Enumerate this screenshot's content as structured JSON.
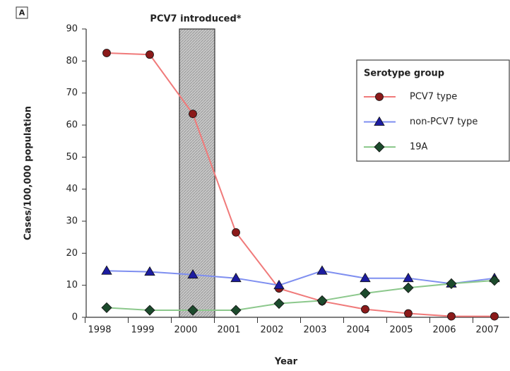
{
  "chart_data": {
    "type": "line",
    "panel_label": "A",
    "annotation": "PCV7 introduced*",
    "x_label": "Year",
    "y_label": "Cases/100,000 population",
    "categories": [
      "1998",
      "1999",
      "2000",
      "2001",
      "2002",
      "2003",
      "2004",
      "2005",
      "2006",
      "2007"
    ],
    "ylim": [
      0,
      90
    ],
    "yticks": [
      0,
      10,
      20,
      30,
      40,
      50,
      60,
      70,
      80,
      90
    ],
    "legend_title": "Serotype group",
    "legend": "upper right",
    "series": [
      {
        "name": "PCV7 type",
        "color": "#f07a7a",
        "marker_color": "#8b1a1a",
        "marker": "circle",
        "values": [
          82.5,
          82,
          63.5,
          26.5,
          9,
          5,
          2.5,
          1.2,
          0.3,
          0.3
        ]
      },
      {
        "name": "non-PCV7 type",
        "color": "#7f8ff0",
        "marker_color": "#1c1ca0",
        "marker": "triangle",
        "values": [
          14.5,
          14.2,
          13.3,
          12.2,
          10,
          14.5,
          12.2,
          12.2,
          10.5,
          12.2
        ]
      },
      {
        "name": "19A",
        "color": "#8cc88c",
        "marker_color": "#1c4a2c",
        "marker": "diamond",
        "values": [
          3,
          2.2,
          2.2,
          2.2,
          4.3,
          5.2,
          7.5,
          9.2,
          10.5,
          11.5
        ]
      }
    ]
  }
}
